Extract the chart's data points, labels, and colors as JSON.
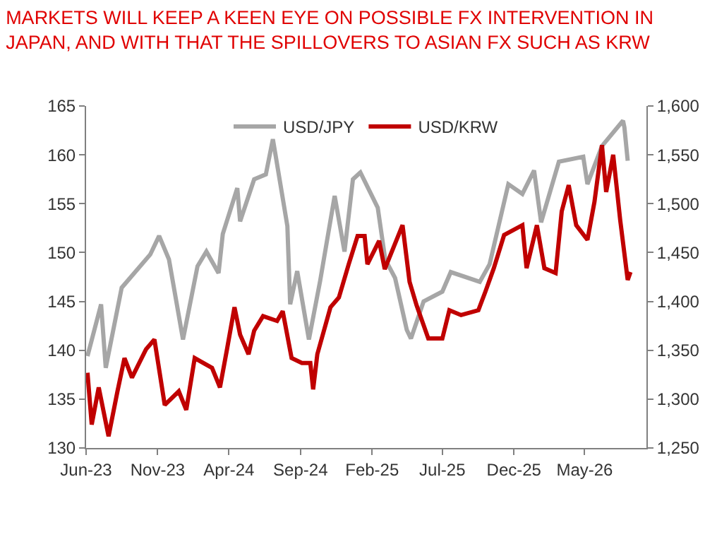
{
  "chart_data": {
    "type": "line",
    "title": "MARKETS WILL KEEP A KEEN EYE ON POSSIBLE FX INTERVENTION IN JAPAN, AND WITH THAT THE SPILLOVERS TO ASIAN FX SUCH AS KRW",
    "series": [
      {
        "name": "USD/JPY",
        "color": "#a6a6a6",
        "x": [
          "2023-06-04",
          "2023-07-03",
          "2023-07-13",
          "2023-08-16",
          "2023-10-16",
          "2023-11-04",
          "2023-11-25",
          "2023-12-25",
          "2024-01-25",
          "2024-02-13",
          "2024-03-10",
          "2024-03-19",
          "2024-04-19",
          "2024-04-25",
          "2024-05-25",
          "2024-06-19",
          "2024-07-04",
          "2024-07-10",
          "2024-08-04",
          "2024-08-10",
          "2024-08-25",
          "2024-09-19",
          "2024-10-13",
          "2024-11-13",
          "2024-12-04",
          "2024-12-22",
          "2025-01-07",
          "2025-02-13",
          "2025-03-01",
          "2025-03-22",
          "2025-04-16",
          "2025-04-25",
          "2025-05-22",
          "2025-07-01",
          "2025-07-19",
          "2025-09-19",
          "2025-10-10",
          "2025-11-19",
          "2025-12-19",
          "2026-01-13",
          "2026-01-28",
          "2026-03-07",
          "2026-04-28",
          "2026-05-07",
          "2026-06-07",
          "2026-07-22",
          "2026-07-25",
          "2026-08-01"
        ],
        "values": [
          139.4,
          144.7,
          138.2,
          146.4,
          149.8,
          151.7,
          149.3,
          141.1,
          148.6,
          150.1,
          147.9,
          151.9,
          156.6,
          153.2,
          157.5,
          158.0,
          161.6,
          159.9,
          152.7,
          144.7,
          148.1,
          141.1,
          147.1,
          155.8,
          150.1,
          157.5,
          158.2,
          154.6,
          149.3,
          147.4,
          142.1,
          141.2,
          145,
          146,
          148,
          147,
          148.8,
          157,
          156,
          158.4,
          153.1,
          159.3,
          159.8,
          157,
          160.9,
          163.5,
          162.8,
          159.4
        ]
      },
      {
        "name": "USD/KRW",
        "color": "#c00000",
        "axis": "y2",
        "x": [
          "2023-06-04",
          "2023-06-13",
          "2023-06-28",
          "2023-07-19",
          "2023-08-07",
          "2023-08-22",
          "2023-09-07",
          "2023-10-07",
          "2023-10-25",
          "2023-11-16",
          "2023-12-16",
          "2024-01-01",
          "2024-01-19",
          "2024-02-25",
          "2024-03-13",
          "2024-03-28",
          "2024-04-13",
          "2024-04-25",
          "2024-05-13",
          "2024-05-25",
          "2024-06-13",
          "2024-07-13",
          "2024-07-25",
          "2024-08-13",
          "2024-09-04",
          "2024-09-22",
          "2024-09-28",
          "2024-10-07",
          "2024-11-04",
          "2024-11-22",
          "2024-12-13",
          "2025-01-01",
          "2025-01-16",
          "2025-01-22",
          "2025-02-16",
          "2025-02-28",
          "2025-04-07",
          "2025-04-22",
          "2025-05-07",
          "2025-06-01",
          "2025-07-01",
          "2025-07-16",
          "2025-08-10",
          "2025-09-16",
          "2025-10-01",
          "2025-10-19",
          "2025-11-10",
          "2025-12-19",
          "2025-12-28",
          "2026-01-19",
          "2026-02-04",
          "2026-02-28",
          "2026-03-13",
          "2026-03-28",
          "2026-04-13",
          "2026-05-07",
          "2026-05-22",
          "2026-06-07",
          "2026-06-16",
          "2026-07-01",
          "2026-07-16",
          "2026-08-01",
          "2026-08-07"
        ],
        "values": [
          1327,
          1274,
          1312,
          1262,
          1308,
          1342,
          1322,
          1351,
          1361,
          1294,
          1308,
          1289,
          1342,
          1332,
          1312,
          1351,
          1394,
          1366,
          1346,
          1370,
          1385,
          1380,
          1390,
          1342,
          1337,
          1337,
          1310,
          1346,
          1394,
          1404,
          1438,
          1467,
          1467,
          1438,
          1462,
          1433,
          1478,
          1420,
          1396,
          1362,
          1362,
          1391,
          1386,
          1391,
          1410,
          1434,
          1468,
          1478,
          1434,
          1478,
          1434,
          1429,
          1492,
          1519,
          1478,
          1463,
          1502,
          1560,
          1512,
          1550,
          1483,
          1422,
          1430
        ]
      }
    ],
    "xlim": [
      "2023-06-01",
      "2026-09-10"
    ],
    "xticks": [
      {
        "value": "2023-06-01",
        "label": "Jun-23"
      },
      {
        "value": "2023-11-01",
        "label": "Nov-23"
      },
      {
        "value": "2024-04-01",
        "label": "Apr-24"
      },
      {
        "value": "2024-09-01",
        "label": "Sep-24"
      },
      {
        "value": "2025-02-01",
        "label": "Feb-25"
      },
      {
        "value": "2025-07-01",
        "label": "Jul-25"
      },
      {
        "value": "2025-12-01",
        "label": "Dec-25"
      },
      {
        "value": "2026-05-01",
        "label": "May-26"
      }
    ],
    "ylim": [
      130,
      165
    ],
    "yticks": [
      130,
      135,
      140,
      145,
      150,
      155,
      160,
      165
    ],
    "y2lim": [
      1250,
      1600
    ],
    "y2ticks": [
      {
        "value": 1250,
        "label": "1,250"
      },
      {
        "value": 1300,
        "label": "1,300"
      },
      {
        "value": 1350,
        "label": "1,350"
      },
      {
        "value": 1400,
        "label": "1,400"
      },
      {
        "value": 1450,
        "label": "1,450"
      },
      {
        "value": 1500,
        "label": "1,500"
      },
      {
        "value": 1550,
        "label": "1,550"
      },
      {
        "value": 1600,
        "label": "1,600"
      }
    ],
    "legend": "top",
    "marker": "none",
    "line_style": "solid"
  }
}
